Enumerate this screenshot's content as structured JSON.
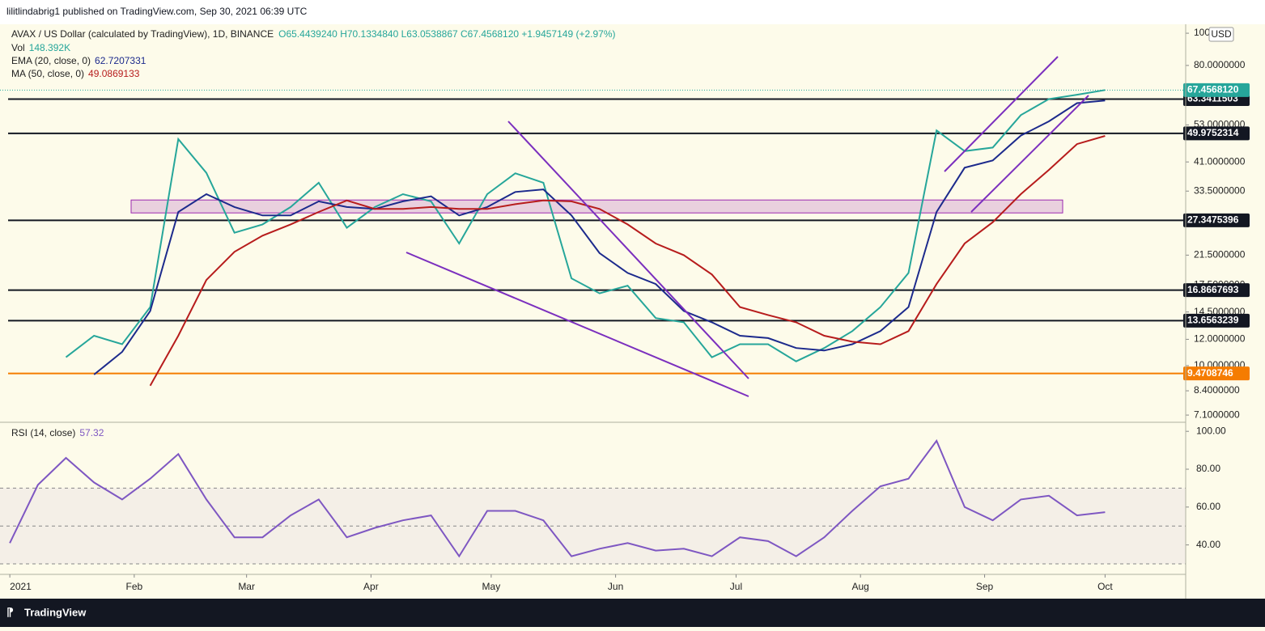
{
  "header": {
    "publisher": "lilitlindabrig1 published on TradingView.com, Sep 30, 2021 06:39 UTC",
    "brand": "TradingView"
  },
  "chart_data": [
    {
      "type": "line",
      "title": "AVAX / US Dollar (calculated by TradingView), 1D, BINANCE",
      "ohlc": "O65.4439240 H70.1334840 L63.0538867 C67.4568120 +1.9457149 (+2.97%)",
      "volume": {
        "name": "Vol",
        "value": "148.392K"
      },
      "currency": "USD",
      "log": true,
      "grid": false,
      "xlim": [
        -0.35,
        41.87
      ],
      "xticks": [
        {
          "value": 0,
          "label": "2021"
        },
        {
          "value": 4.43,
          "label": "Feb"
        },
        {
          "value": 8.43,
          "label": "Mar"
        },
        {
          "value": 12.86,
          "label": "Apr"
        },
        {
          "value": 17.14,
          "label": "May"
        },
        {
          "value": 21.57,
          "label": "Jun"
        },
        {
          "value": 25.86,
          "label": "Jul"
        },
        {
          "value": 30.29,
          "label": "Aug"
        },
        {
          "value": 34.71,
          "label": "Sep"
        },
        {
          "value": 39,
          "label": "Oct"
        }
      ],
      "ylim": [
        6.83,
        106.4
      ],
      "yticks": [
        {
          "value": 100,
          "label": "100"
        },
        {
          "value": 80,
          "label": "80.0000000"
        },
        {
          "value": 53,
          "label": "53.0000000"
        },
        {
          "value": 41,
          "label": "41.0000000"
        },
        {
          "value": 33.5,
          "label": "33.5000000"
        },
        {
          "value": 21.5,
          "label": "21.5000000"
        },
        {
          "value": 17.5,
          "label": "17.5000000"
        },
        {
          "value": 14.5,
          "label": "14.5000000"
        },
        {
          "value": 12,
          "label": "12.0000000"
        },
        {
          "value": 10,
          "label": "10.0000000"
        },
        {
          "value": 8.4,
          "label": "8.4000000"
        },
        {
          "value": 7.1,
          "label": "7.1000000"
        }
      ],
      "series": [
        {
          "color": "#26a69a",
          "values": [
            null,
            null,
            10.6,
            12.3,
            11.6,
            15,
            48,
            38,
            25.1,
            26.6,
            30,
            35.5,
            26,
            30,
            32.8,
            31.2,
            23.3,
            32.8,
            37.9,
            35.5,
            18.3,
            16.5,
            17.4,
            13.9,
            13.5,
            10.6,
            11.6,
            11.6,
            10.3,
            11.3,
            12.7,
            15,
            19,
            51,
            44.2,
            45.3,
            56.7,
            63.4,
            65.3,
            67.456812
          ]
        },
        {
          "name": "EMA (20, close, 0)",
          "legend_value": "62.7207331",
          "color": "#1c2a8c",
          "values": [
            null,
            null,
            null,
            9.4,
            11,
            14.6,
            29,
            32.8,
            30,
            28.3,
            28.3,
            31.2,
            30,
            29.6,
            31.2,
            32.3,
            28.3,
            30,
            33.3,
            33.9,
            28.3,
            21.8,
            19,
            17.6,
            14.6,
            13.5,
            12.3,
            12.1,
            11.3,
            11.1,
            11.6,
            12.7,
            15,
            29,
            39.4,
            41.4,
            49.2,
            54.3,
            61.6,
            62.72
          ]
        },
        {
          "name": "MA (50, close, 0)",
          "legend_value": "49.0869133",
          "color": "#b71c1c",
          "values": [
            null,
            null,
            null,
            null,
            null,
            8.7,
            12.3,
            18.1,
            22,
            24.6,
            26.6,
            29,
            31.4,
            29.6,
            29.6,
            30,
            29.6,
            29.6,
            30.6,
            31.4,
            31.2,
            29.6,
            26.6,
            23.3,
            21.5,
            18.8,
            15,
            14.2,
            13.5,
            12.3,
            11.8,
            11.6,
            12.7,
            17.6,
            23.3,
            27,
            32.8,
            38.8,
            46.4,
            49.09
          ]
        }
      ],
      "horizontal_lines": [
        {
          "value": 63.3411503,
          "label": "63.3411503",
          "color": "#131722"
        },
        {
          "value": 49.9752314,
          "label": "49.9752314",
          "color": "#131722"
        },
        {
          "value": 27.3475396,
          "label": "27.3475396",
          "color": "#131722"
        },
        {
          "value": 16.8667693,
          "label": "16.8667693",
          "color": "#131722"
        },
        {
          "value": 13.6563239,
          "label": "13.6563239",
          "color": "#131722"
        },
        {
          "value": 9.4708746,
          "label": "9.4708746",
          "color": "#f57c00"
        }
      ],
      "zone": [
        28.8,
        31.5
      ],
      "zone_color": "#9c27b0",
      "last_price": {
        "value": 67.456812,
        "label": "67.4568120",
        "color": "#26a69a"
      }
    },
    {
      "type": "line",
      "title": "RSI (14, close)",
      "legend_value": "57.32",
      "ylim": [
        25.3,
        103.5
      ],
      "yticks": [
        {
          "value": 100,
          "label": "100.00"
        },
        {
          "value": 80,
          "label": "80.00"
        },
        {
          "value": 60,
          "label": "60.00"
        },
        {
          "value": 40,
          "label": "40.00"
        }
      ],
      "band": [
        30,
        70
      ],
      "midline": 50,
      "series": [
        {
          "color": "#7e57c2",
          "values": [
            41,
            71.7,
            86,
            73,
            64,
            75,
            88,
            64,
            44,
            44,
            55.6,
            64,
            44,
            49,
            53,
            55.6,
            34,
            58,
            58,
            53,
            34,
            38,
            41,
            37,
            38,
            34,
            44,
            42,
            34,
            44,
            58,
            71,
            75,
            95,
            60,
            53,
            64,
            66,
            55.6,
            57.32
          ]
        }
      ]
    }
  ]
}
